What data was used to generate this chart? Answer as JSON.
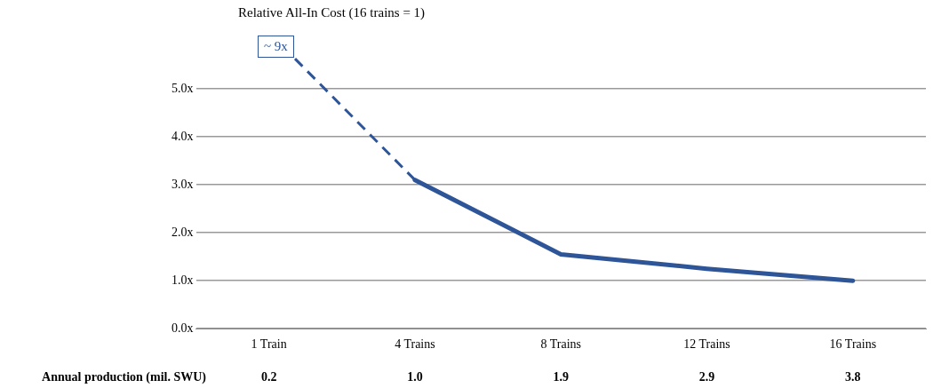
{
  "chart_data": {
    "type": "line",
    "title": "Relative All-In Cost (16 trains = 1)",
    "categories": [
      "1 Train",
      "4 Trains",
      "8 Trains",
      "12 Trains",
      "16 Trains"
    ],
    "series": [
      {
        "color": "#2e5597",
        "values": [
          null,
          3.1,
          1.55,
          1.25,
          1.0
        ]
      }
    ],
    "ylim": [
      0,
      5
    ],
    "yticks": [
      {
        "value": 0,
        "label": "0.0x"
      },
      {
        "value": 1,
        "label": "1.0x"
      },
      {
        "value": 2,
        "label": "2.0x"
      },
      {
        "value": 3,
        "label": "3.0x"
      },
      {
        "value": 4,
        "label": "4.0x"
      },
      {
        "value": 5,
        "label": "5.0x"
      }
    ],
    "grid": "y",
    "legend": false,
    "marker": "none",
    "line_style": "solid",
    "annotations": [
      {
        "text": "~ 9x",
        "x": "4 Trains",
        "y": 3.1
      },
      "Annual production (mil. SWU)",
      "0.2",
      "1.0",
      "1.9",
      "2.9",
      "3.8"
    ]
  }
}
